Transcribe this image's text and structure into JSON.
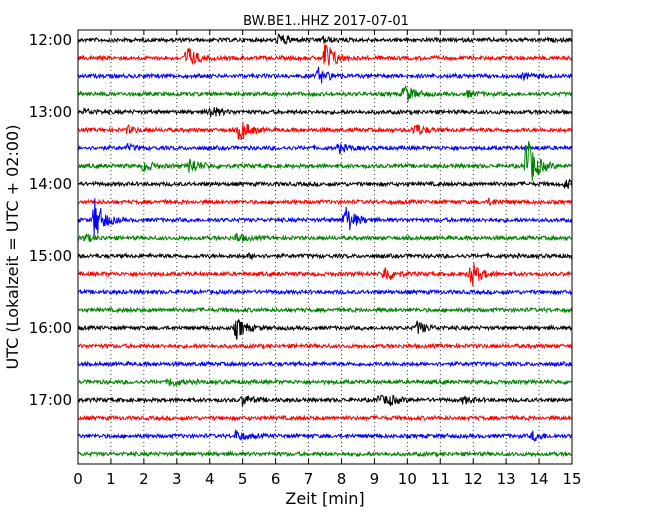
{
  "chart_data": {
    "type": "line",
    "title": "BW.BE1..HHZ 2017-07-01",
    "xlabel": "Zeit  [min]",
    "ylabel": "UTC (Lokalzeit = UTC + 02:00)",
    "xlim": [
      0,
      15
    ],
    "x_ticks": [
      "0",
      "1",
      "2",
      "3",
      "4",
      "5",
      "6",
      "7",
      "8",
      "9",
      "10",
      "11",
      "12",
      "13",
      "14",
      "15"
    ],
    "y_ticks": [
      "12:00",
      "13:00",
      "14:00",
      "15:00",
      "16:00",
      "17:00"
    ],
    "grid": "vertical dotted",
    "trace_interval_minutes": 15,
    "series_colors": [
      "#000000",
      "#ff0000",
      "#0000ff",
      "#008000"
    ],
    "traces": [
      {
        "start": "12:00",
        "color": "#000000",
        "events": [
          {
            "t": 6.1,
            "amp": 0.35
          },
          {
            "t": 7.4,
            "amp": 0.2
          }
        ]
      },
      {
        "start": "12:15",
        "color": "#ff0000",
        "events": [
          {
            "t": 3.3,
            "amp": 0.7
          },
          {
            "t": 7.5,
            "amp": 1.0
          }
        ]
      },
      {
        "start": "12:30",
        "color": "#0000ff",
        "events": [
          {
            "t": 7.3,
            "amp": 0.45
          },
          {
            "t": 13.5,
            "amp": 0.15
          }
        ]
      },
      {
        "start": "12:45",
        "color": "#008000",
        "events": [
          {
            "t": 9.9,
            "amp": 0.6
          },
          {
            "t": 11.8,
            "amp": 0.15
          }
        ]
      },
      {
        "start": "13:00",
        "color": "#000000",
        "events": [
          {
            "t": 4.0,
            "amp": 0.35
          },
          {
            "t": 0.2,
            "amp": 0.15
          }
        ]
      },
      {
        "start": "13:15",
        "color": "#ff0000",
        "events": [
          {
            "t": 4.9,
            "amp": 0.7
          },
          {
            "t": 10.2,
            "amp": 0.4
          },
          {
            "t": 1.5,
            "amp": 0.2
          }
        ]
      },
      {
        "start": "13:30",
        "color": "#0000ff",
        "events": [
          {
            "t": 7.9,
            "amp": 0.25
          },
          {
            "t": 1.5,
            "amp": 0.15
          }
        ]
      },
      {
        "start": "13:45",
        "color": "#008000",
        "events": [
          {
            "t": 3.4,
            "amp": 0.5
          },
          {
            "t": 13.6,
            "amp": 1.8
          },
          {
            "t": 2.0,
            "amp": 0.3
          }
        ]
      },
      {
        "start": "14:00",
        "color": "#000000",
        "events": [
          {
            "t": 14.8,
            "amp": 0.25
          }
        ]
      },
      {
        "start": "14:15",
        "color": "#ff0000",
        "events": [
          {
            "t": 12.5,
            "amp": 0.15
          }
        ]
      },
      {
        "start": "14:30",
        "color": "#0000ff",
        "events": [
          {
            "t": 0.5,
            "amp": 1.2
          },
          {
            "t": 8.1,
            "amp": 0.9
          }
        ]
      },
      {
        "start": "14:45",
        "color": "#008000",
        "events": [
          {
            "t": 4.8,
            "amp": 0.25
          },
          {
            "t": 0.2,
            "amp": 0.2
          }
        ]
      },
      {
        "start": "15:00",
        "color": "#000000",
        "events": [
          {
            "t": 5.2,
            "amp": 0.1
          }
        ]
      },
      {
        "start": "15:15",
        "color": "#ff0000",
        "events": [
          {
            "t": 9.3,
            "amp": 0.5
          },
          {
            "t": 11.9,
            "amp": 0.85
          }
        ]
      },
      {
        "start": "15:30",
        "color": "#0000ff",
        "events": []
      },
      {
        "start": "15:45",
        "color": "#008000",
        "events": []
      },
      {
        "start": "16:00",
        "color": "#000000",
        "events": [
          {
            "t": 4.8,
            "amp": 0.6
          },
          {
            "t": 10.3,
            "amp": 0.35
          }
        ]
      },
      {
        "start": "16:15",
        "color": "#ff0000",
        "events": []
      },
      {
        "start": "16:30",
        "color": "#0000ff",
        "events": []
      },
      {
        "start": "16:45",
        "color": "#008000",
        "events": [
          {
            "t": 2.8,
            "amp": 0.25
          }
        ]
      },
      {
        "start": "17:00",
        "color": "#000000",
        "events": [
          {
            "t": 5.0,
            "amp": 0.3
          },
          {
            "t": 9.1,
            "amp": 0.25
          },
          {
            "t": 9.4,
            "amp": 0.25
          },
          {
            "t": 11.7,
            "amp": 0.2
          }
        ]
      },
      {
        "start": "17:15",
        "color": "#ff0000",
        "events": []
      },
      {
        "start": "17:30",
        "color": "#0000ff",
        "events": [
          {
            "t": 4.8,
            "amp": 0.3
          },
          {
            "t": 13.8,
            "amp": 0.25
          }
        ]
      },
      {
        "start": "17:45",
        "color": "#008000",
        "events": []
      }
    ]
  }
}
